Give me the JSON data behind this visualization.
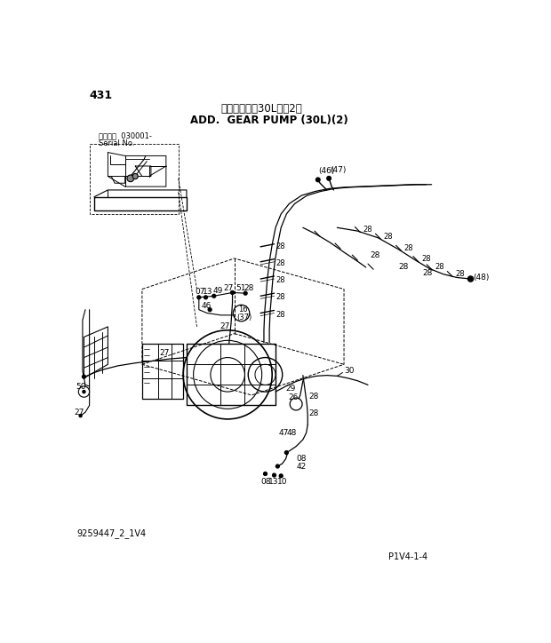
{
  "page_number": "431",
  "title_jp": "追加ポンプ（30L）（2）",
  "title_en": "ADD.  GEAR PUMP (30L)(2)",
  "serial_line1": "適用号機  030001-",
  "serial_line2": "Serial No.",
  "doc_number": "9259447_2_1V4",
  "page_ref": "P1V4-1-4",
  "bg_color": "#ffffff",
  "fig_width": 6.2,
  "fig_height": 7.24,
  "dpi": 100
}
